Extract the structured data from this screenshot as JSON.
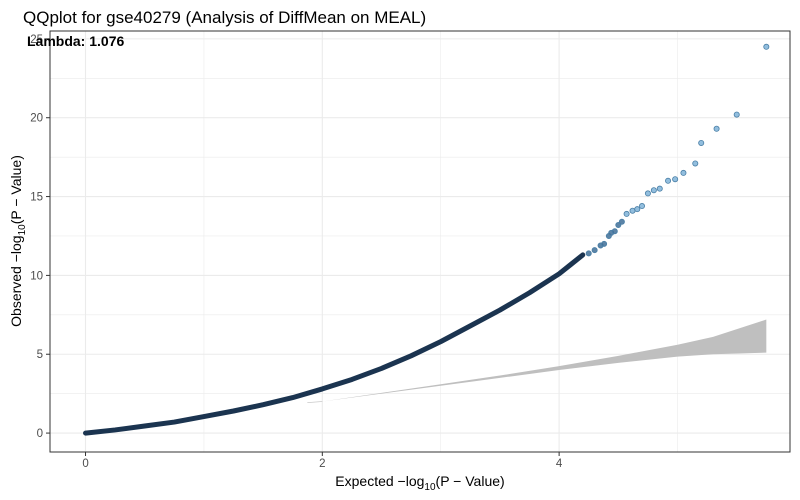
{
  "chart_data": {
    "type": "scatter",
    "title": "QQplot for gse40279 (Analysis of DiffMean on MEAL)",
    "xlabel": {
      "prefix": "Expected  −log",
      "sub": "10",
      "suffix": "(P − Value)"
    },
    "ylabel": {
      "prefix": "Observed  −log",
      "sub": "10",
      "suffix": "(P − Value)"
    },
    "annotation": "Lambda:  1.076",
    "xlim": [
      -0.3,
      5.95
    ],
    "ylim": [
      -1.2,
      25.5
    ],
    "xticks": [
      0,
      2,
      4
    ],
    "xtick_labels": [
      "0",
      "2",
      "4"
    ],
    "yticks": [
      0,
      5,
      10,
      15,
      20,
      25
    ],
    "ytick_labels": [
      "0",
      "5",
      "10",
      "15",
      "20",
      "25"
    ],
    "grid": true,
    "colors": {
      "dense_points": "#1b3450",
      "outlier_points": "#7fb3d8",
      "outlier_edge": "#4a7fa6",
      "ci_band": "#bfbfbf",
      "grid": "#ebebeb",
      "axis_border": "#333333"
    },
    "curve": [
      [
        0,
        0
      ],
      [
        0.25,
        0.2
      ],
      [
        0.5,
        0.45
      ],
      [
        0.75,
        0.7
      ],
      [
        1.0,
        1.05
      ],
      [
        1.25,
        1.4
      ],
      [
        1.5,
        1.8
      ],
      [
        1.75,
        2.25
      ],
      [
        2.0,
        2.8
      ],
      [
        2.25,
        3.4
      ],
      [
        2.5,
        4.1
      ],
      [
        2.75,
        4.9
      ],
      [
        3.0,
        5.8
      ],
      [
        3.25,
        6.8
      ],
      [
        3.5,
        7.8
      ],
      [
        3.75,
        8.9
      ],
      [
        4.0,
        10.1
      ],
      [
        4.1,
        10.7
      ],
      [
        4.2,
        11.3
      ]
    ],
    "tail_points": [
      [
        4.25,
        11.4
      ],
      [
        4.3,
        11.6
      ],
      [
        4.35,
        11.9
      ],
      [
        4.38,
        12.0
      ],
      [
        4.42,
        12.5
      ],
      [
        4.44,
        12.7
      ],
      [
        4.47,
        12.8
      ],
      [
        4.5,
        13.2
      ],
      [
        4.53,
        13.4
      ],
      [
        4.57,
        13.9
      ],
      [
        4.62,
        14.1
      ],
      [
        4.66,
        14.2
      ],
      [
        4.7,
        14.4
      ],
      [
        4.75,
        15.2
      ],
      [
        4.8,
        15.4
      ],
      [
        4.85,
        15.5
      ],
      [
        4.92,
        16.0
      ],
      [
        4.98,
        16.1
      ],
      [
        5.05,
        16.5
      ],
      [
        5.15,
        17.1
      ],
      [
        5.2,
        18.4
      ],
      [
        5.33,
        19.3
      ],
      [
        5.5,
        20.2
      ],
      [
        5.75,
        24.5
      ]
    ],
    "ci_band": {
      "x": [
        2.0,
        2.5,
        3.0,
        3.5,
        4.0,
        4.5,
        5.0,
        5.3,
        5.75
      ],
      "upper": [
        2.0,
        2.55,
        3.1,
        3.65,
        4.25,
        4.9,
        5.6,
        6.1,
        7.2
      ],
      "lower": [
        2.0,
        2.5,
        3.0,
        3.5,
        4.0,
        4.45,
        4.85,
        5.0,
        5.1
      ]
    }
  }
}
